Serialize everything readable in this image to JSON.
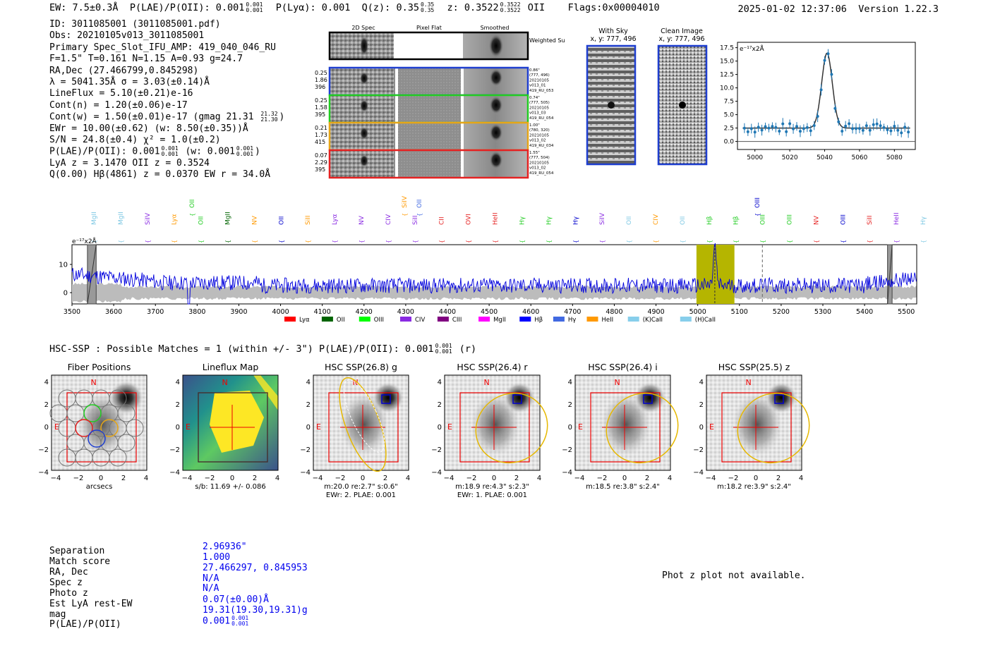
{
  "header": {
    "ew": "EW: 7.5±0.3Å",
    "plae_label": "P(LAE)/P(OII): 0.001",
    "plae_hi": "0.001",
    "plae_lo": "0.001",
    "plya": "P(Lyα): 0.001",
    "qz_label": "Q(z): 0.35",
    "qz_hi": "0.35",
    "qz_lo": "0.35",
    "z_label": "z: 0.3522",
    "z_hi": "0.3522",
    "z_lo": "0.3522",
    "z_line": "OII",
    "flags": "Flags:0x00004010",
    "timestamp": "2025-01-02 12:37:06",
    "version": "Version 1.22.3"
  },
  "info": {
    "id": "ID: 3011085001 (3011085001.pdf)",
    "obs": "Obs: 20210105v013_3011085001",
    "primary": "Primary Spec_Slot_IFU_AMP: 419_040_046_RU",
    "fit": "F=1.5\"  T=0.161  N=1.15  A=0.93  g=24.7",
    "radec": "RA,Dec (27.466799,0.845298)",
    "lambda": "λ = 5041.35Å  σ = 3.03(±0.14)Å",
    "lineflux": "LineFlux = 5.10(±0.21)e-16",
    "contn": "Cont(n) = 1.20(±0.06)e-17",
    "contw": "Cont(w) = 1.50(±0.01)e-17 (gmag 21.31",
    "contw_hi": "21.32",
    "contw_lo": "21.30",
    "contw_end": ")",
    "ewr": "EWr = 10.00(±0.62) (w: 8.50(±0.35))Å",
    "sn": "S/N = 24.8(±0.4)  χ² = 1.0(±0.2)",
    "plae": "P(LAE)/P(OII): 0.001",
    "plae_hi": "0.001",
    "plae_lo": "0.001",
    "plae_w": "(w: 0.001",
    "plae_w_hi": "0.001",
    "plae_w_lo": "0.001",
    "plae_end": ")",
    "lya": "LyA z = 3.1470  OII z = 0.3524",
    "q": "Q(0.00) Hβ(4861) z = 0.0370  EW r = 34.0Å"
  },
  "cutouts": {
    "col_2d": "2D Spec",
    "col_flat": "Pixel Flat",
    "col_smooth": "Smoothed",
    "weighted": "Weighted Sum",
    "rows": [
      {
        "left": [
          "0.25",
          "1.86",
          "396"
        ],
        "right": [
          "0.86\"",
          "(777, 496)",
          "20210105",
          "v013_01",
          "419_RU_053"
        ],
        "color": "#1f3fd0"
      },
      {
        "left": [
          "0.25",
          "1.58",
          "395"
        ],
        "right": [
          "0.74\"",
          "(777, 505)",
          "20210105",
          "v013_03",
          "419_RU_054"
        ],
        "color": "#22cc22"
      },
      {
        "left": [
          "0.21",
          "1.73",
          "415"
        ],
        "right": [
          "1.00\"",
          "(780, 320)",
          "20210105",
          "v013_02",
          "419_RU_034"
        ],
        "color": "#e6a617"
      },
      {
        "left": [
          "0.07",
          "2.29",
          "395"
        ],
        "right": [
          "1.55\"",
          "(777, 504)",
          "20210105",
          "v013_02",
          "419_RU_054"
        ],
        "color": "#e52222"
      }
    ]
  },
  "sky": {
    "with_sky": "With Sky",
    "with_sky_xy": "x, y: 777, 496",
    "clean": "Clean Image",
    "clean_xy": "x, y: 777, 496"
  },
  "zoom_chart": {
    "unit": "e⁻¹⁷x2Å",
    "yticks": [
      "17.5",
      "15.0",
      "12.5",
      "10.0",
      "7.5",
      "5.0",
      "2.5",
      "0.0"
    ],
    "xticks": [
      "5000",
      "5020",
      "5040",
      "5060",
      "5080"
    ]
  },
  "spectrum": {
    "unit": "e⁻¹⁷x2Å",
    "yticks": [
      "10",
      "0"
    ],
    "xticks": [
      "3500",
      "3600",
      "3700",
      "3800",
      "3900",
      "4000",
      "4100",
      "4200",
      "4300",
      "4400",
      "4500",
      "4600",
      "4700",
      "4800",
      "4900",
      "5000",
      "5100",
      "5200",
      "5300",
      "5400",
      "5500"
    ],
    "lines_low": [
      {
        "t": "MgII",
        "c": "#7ec8e3"
      },
      {
        "t": "MgII",
        "c": "#7ec8e3"
      },
      {
        "t": "SiIV",
        "c": "#8a2be2"
      },
      {
        "t": "Lyα",
        "c": "#ff9900"
      },
      {
        "t": "OII",
        "c": "#22cc22"
      },
      {
        "t": "MgII",
        "c": "#006400"
      },
      {
        "t": "NV",
        "c": "#ff9900"
      },
      {
        "t": "OII",
        "c": "#0000cc"
      },
      {
        "t": "SiII",
        "c": "#ff9900"
      },
      {
        "t": "Lyα",
        "c": "#8a2be2"
      },
      {
        "t": "NV",
        "c": "#8a2be2"
      },
      {
        "t": "CIV",
        "c": "#8a2be2"
      },
      {
        "t": "SiII",
        "c": "#8a2be2"
      },
      {
        "t": "CII",
        "c": "#e52222"
      },
      {
        "t": "OVI",
        "c": "#e52222"
      },
      {
        "t": "HeII",
        "c": "#e52222"
      },
      {
        "t": "Hγ",
        "c": "#22cc22"
      },
      {
        "t": "Hγ",
        "c": "#22cc22"
      },
      {
        "t": "Hγ",
        "c": "#0000cc"
      },
      {
        "t": "SiIV",
        "c": "#8a2be2"
      },
      {
        "t": "OII",
        "c": "#7ec8e3"
      },
      {
        "t": "CIV",
        "c": "#ff9900"
      },
      {
        "t": "OII",
        "c": "#7ec8e3"
      },
      {
        "t": "Hβ",
        "c": "#22cc22"
      },
      {
        "t": "Hβ",
        "c": "#22cc22"
      },
      {
        "t": "OIII",
        "c": "#22cc22"
      },
      {
        "t": "OIII",
        "c": "#22cc22"
      },
      {
        "t": "NV",
        "c": "#e52222"
      },
      {
        "t": "OIII",
        "c": "#0000cc"
      },
      {
        "t": "SiII",
        "c": "#e52222"
      },
      {
        "t": "HeII",
        "c": "#8a2be2"
      },
      {
        "t": "Hγ",
        "c": "#7ec8e3"
      }
    ],
    "lines_high": [
      {
        "t": "OII",
        "c": "#22cc22"
      },
      {
        "t": "SiIV",
        "c": "#ff9900"
      },
      {
        "t": "OII",
        "c": "#4169e1"
      },
      {
        "t": "OIII",
        "c": "#0000cc"
      }
    ],
    "legend": [
      {
        "t": "Lyα",
        "c": "#ff0000"
      },
      {
        "t": "OII",
        "c": "#006400"
      },
      {
        "t": "OIII",
        "c": "#00ff00"
      },
      {
        "t": "CIV",
        "c": "#8a2be2"
      },
      {
        "t": "CIII",
        "c": "#800080"
      },
      {
        "t": "MgII",
        "c": "#ff00ff"
      },
      {
        "t": "Hβ",
        "c": "#0000ff"
      },
      {
        "t": "Hγ",
        "c": "#4169e1"
      },
      {
        "t": "HeII",
        "c": "#ff9900"
      },
      {
        "t": "(K)CaII",
        "c": "#87ceeb"
      },
      {
        "t": "(H)CaII",
        "c": "#87ceeb"
      }
    ]
  },
  "hsc": {
    "title": "HSC-SSP : Possible Matches = 1 (within +/- 3\")  P(LAE)/P(OII): 0.001",
    "title_hi": "0.001",
    "title_lo": "0.001",
    "title_end": "(r)",
    "panels": [
      {
        "title": "Fiber Positions",
        "sub1": "arcsecs",
        "sub2": ""
      },
      {
        "title": "Lineflux Map",
        "sub1": "s/b: 11.69 +/- 0.086",
        "sub2": ""
      },
      {
        "title": "HSC SSP(26.8) g",
        "sub1": "m:20.0  re:2.7\"  s:0.6\"",
        "sub2": "EWr: 2. PLAE: 0.001"
      },
      {
        "title": "HSC SSP(26.4) r",
        "sub1": "m:18.9  re:4.3\"  s:2.3\"",
        "sub2": "EWr: 1. PLAE: 0.001"
      },
      {
        "title": "HSC SSP(26.4) i",
        "sub1": "m:18.5  re:3.8\"  s:2.4\"",
        "sub2": ""
      },
      {
        "title": "HSC SSP(25.5) z",
        "sub1": "m:18.2  re:3.9\"  s:2.4\"",
        "sub2": ""
      }
    ],
    "north": "N",
    "east": "E",
    "yticks": [
      "4",
      "2",
      "0",
      "−2",
      "−4"
    ],
    "xticks": [
      "−4",
      "−2",
      "0",
      "2",
      "4"
    ]
  },
  "match_table": {
    "keys": [
      "Separation",
      "Match score",
      "RA, Dec",
      "Spec z",
      "Photo z",
      "Est LyA rest-EW",
      "mag",
      "P(LAE)/P(OII)"
    ],
    "values": [
      "2.96936\"",
      "1.000",
      "27.466297, 0.845953",
      "N/A",
      "N/A",
      "0.07(±0.00)Å",
      "19.31(19.30,19.31)g",
      "0.001"
    ],
    "plae_hi": "0.001",
    "plae_lo": "0.001"
  },
  "photz": "Phot z plot not available."
}
